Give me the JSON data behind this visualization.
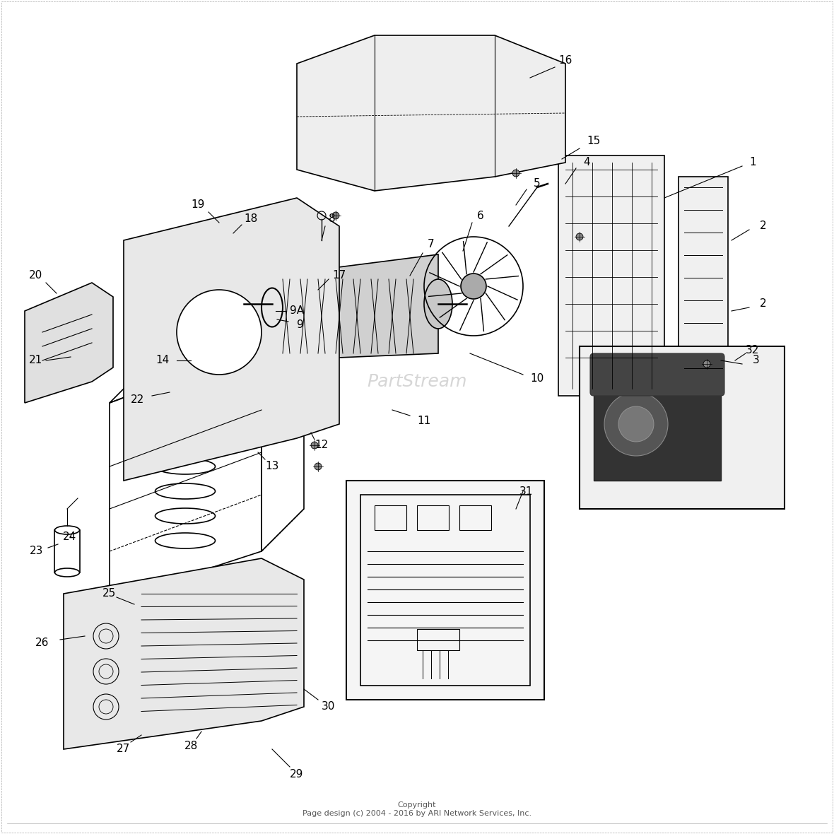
{
  "title": "",
  "copyright_text": "Copyright\nPage design (c) 2004 - 2016 by ARI Network Services, Inc.",
  "background_color": "#ffffff",
  "border_color": "#cccccc",
  "figsize": [
    11.8,
    11.8
  ],
  "dpi": 100,
  "part_numbers": [
    1,
    2,
    3,
    4,
    5,
    6,
    7,
    8,
    9,
    10,
    11,
    12,
    13,
    14,
    15,
    16,
    17,
    18,
    19,
    20,
    21,
    22,
    23,
    24,
    25,
    26,
    27,
    28,
    29,
    30,
    31,
    32
  ],
  "watermark": "PartStream",
  "line_color": "#000000",
  "label_color": "#000000"
}
